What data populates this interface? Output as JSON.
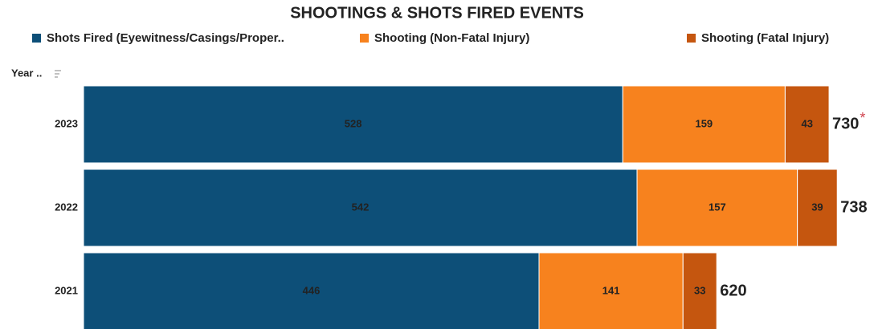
{
  "chart_data": {
    "type": "stacked-bar-horizontal",
    "title": "SHOOTINGS & SHOTS FIRED EVENTS",
    "y_axis_label": "Year ..",
    "categories": [
      "2023",
      "2022",
      "2021"
    ],
    "series": [
      {
        "name": "Shots Fired (Eyewitness/Casings/Proper..",
        "color": "#0d4f78",
        "values": [
          528,
          542,
          446
        ]
      },
      {
        "name": "Shooting (Non-Fatal Injury)",
        "color": "#f7821e",
        "values": [
          159,
          157,
          141
        ]
      },
      {
        "name": "Shooting (Fatal Injury)",
        "color": "#c5560f",
        "values": [
          43,
          39,
          33
        ]
      }
    ],
    "totals": [
      730,
      738,
      620
    ],
    "total_annotations": [
      "*",
      null,
      null
    ],
    "xlim": [
      0,
      774
    ]
  }
}
